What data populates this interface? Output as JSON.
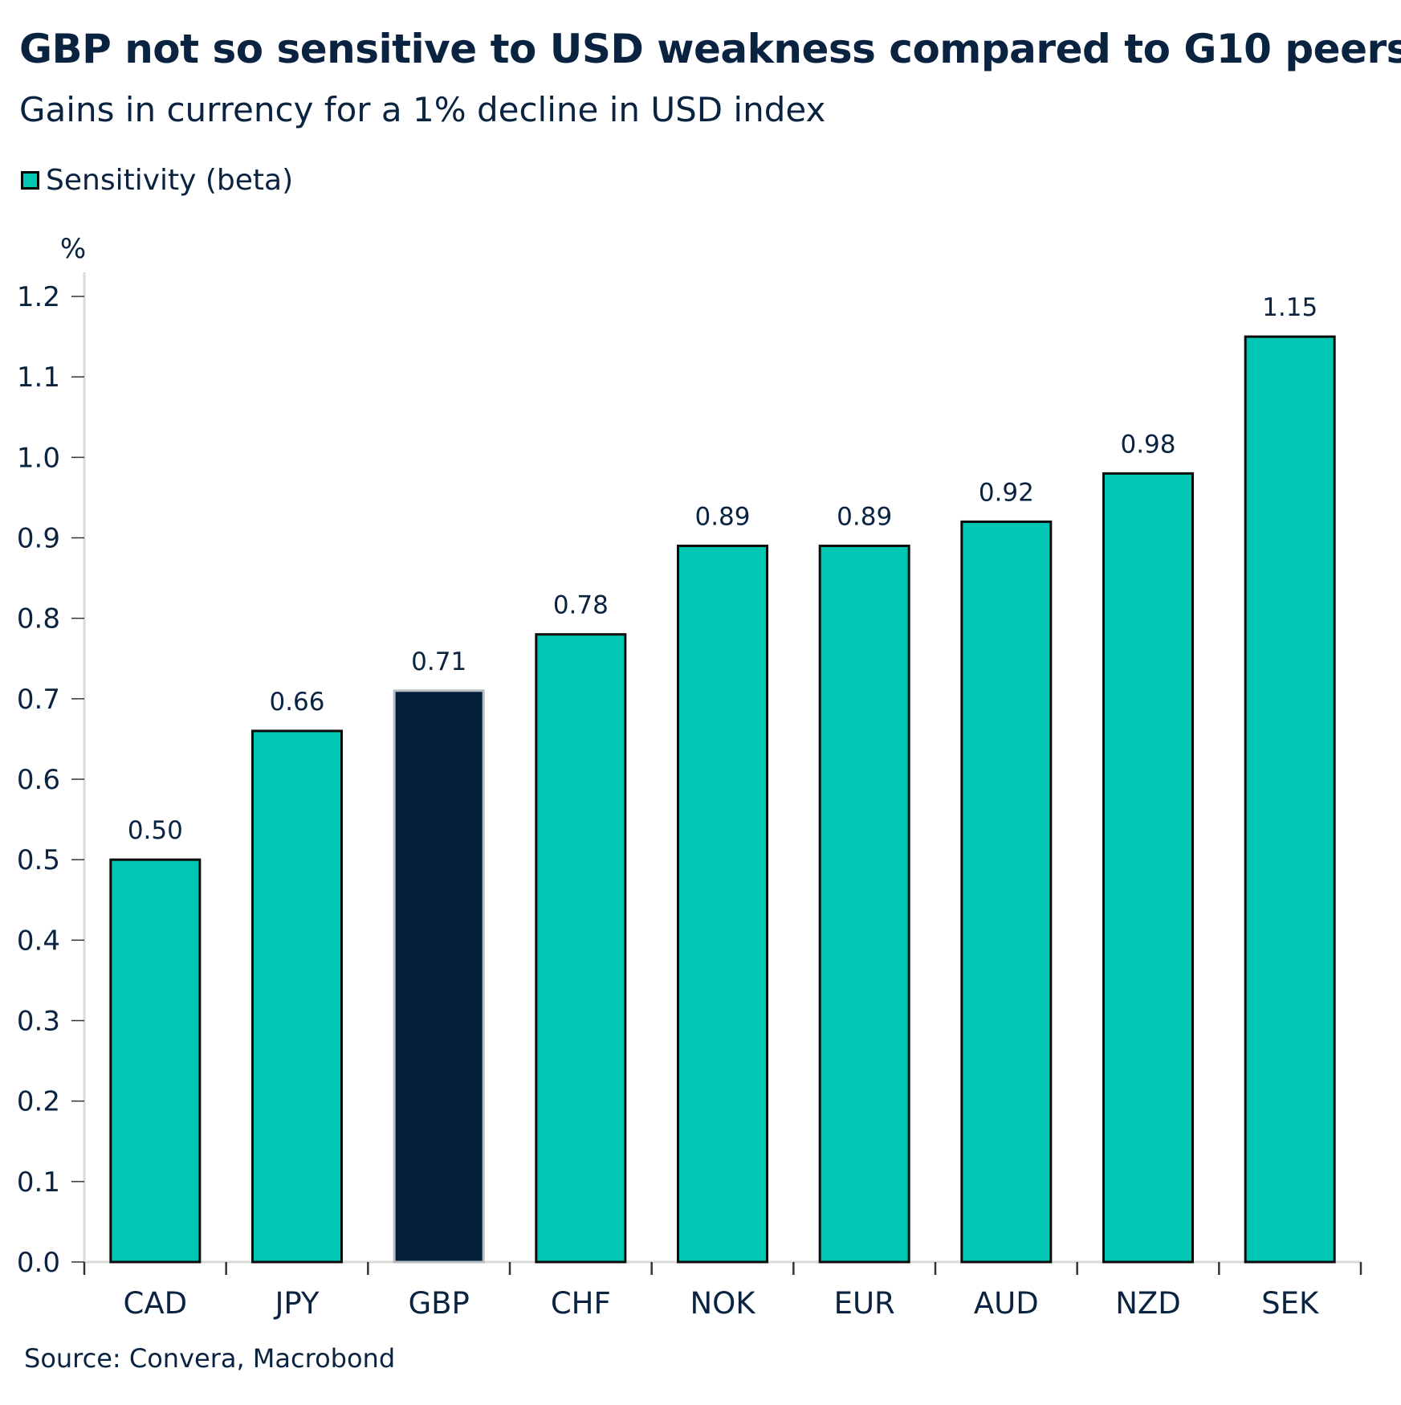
{
  "chart_data": {
    "type": "bar",
    "title": "GBP not so sensitive to USD weakness compared to G10 peers",
    "subtitle": "Gains in currency for a 1% decline in USD index",
    "ylabel": "%",
    "xlabel": "",
    "ylim": [
      0,
      1.2
    ],
    "yticks": [
      "0.0",
      "0.1",
      "0.2",
      "0.3",
      "0.4",
      "0.5",
      "0.6",
      "0.7",
      "0.8",
      "0.9",
      "1.0",
      "1.1",
      "1.2"
    ],
    "categories": [
      "CAD",
      "JPY",
      "GBP",
      "CHF",
      "NOK",
      "EUR",
      "AUD",
      "NZD",
      "SEK"
    ],
    "series": [
      {
        "name": "Sensitivity (beta)",
        "values": [
          0.5,
          0.66,
          0.71,
          0.78,
          0.89,
          0.89,
          0.92,
          0.98,
          1.15
        ]
      }
    ],
    "data_labels": [
      "0.50",
      "0.66",
      "0.71",
      "0.78",
      "0.89",
      "0.89",
      "0.92",
      "0.98",
      "1.15"
    ],
    "highlight_category": "GBP",
    "colors": {
      "bar": "#00c7b4",
      "highlight": "#031e38",
      "text": "#0a2340"
    },
    "legend_position": "top-left",
    "grid": false,
    "source": "Source: Convera, Macrobond"
  }
}
